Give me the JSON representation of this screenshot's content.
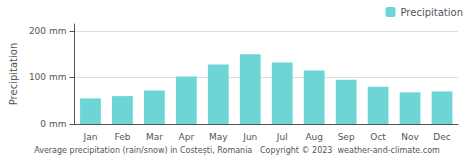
{
  "chart_data": {
    "type": "bar",
    "categories": [
      "Jan",
      "Feb",
      "Mar",
      "Apr",
      "May",
      "Jun",
      "Jul",
      "Aug",
      "Sep",
      "Oct",
      "Nov",
      "Dec"
    ],
    "series": [
      {
        "name": "Precipitation",
        "color": "#6dd5d5",
        "values": [
          55,
          60,
          72,
          102,
          128,
          150,
          132,
          115,
          95,
          80,
          68,
          70
        ]
      }
    ],
    "ylabel": "Precipitation",
    "xlabel": "Average precipitation (rain/snow) in Costești, Romania   Copyright © 2023  weather-and-climate.com",
    "ylim": [
      0,
      215
    ],
    "yticks": [
      {
        "value": 0,
        "label": "0 mm"
      },
      {
        "value": 100,
        "label": "100 mm"
      },
      {
        "value": 200,
        "label": "200 mm"
      }
    ],
    "grid": true,
    "legend": "upper right"
  }
}
